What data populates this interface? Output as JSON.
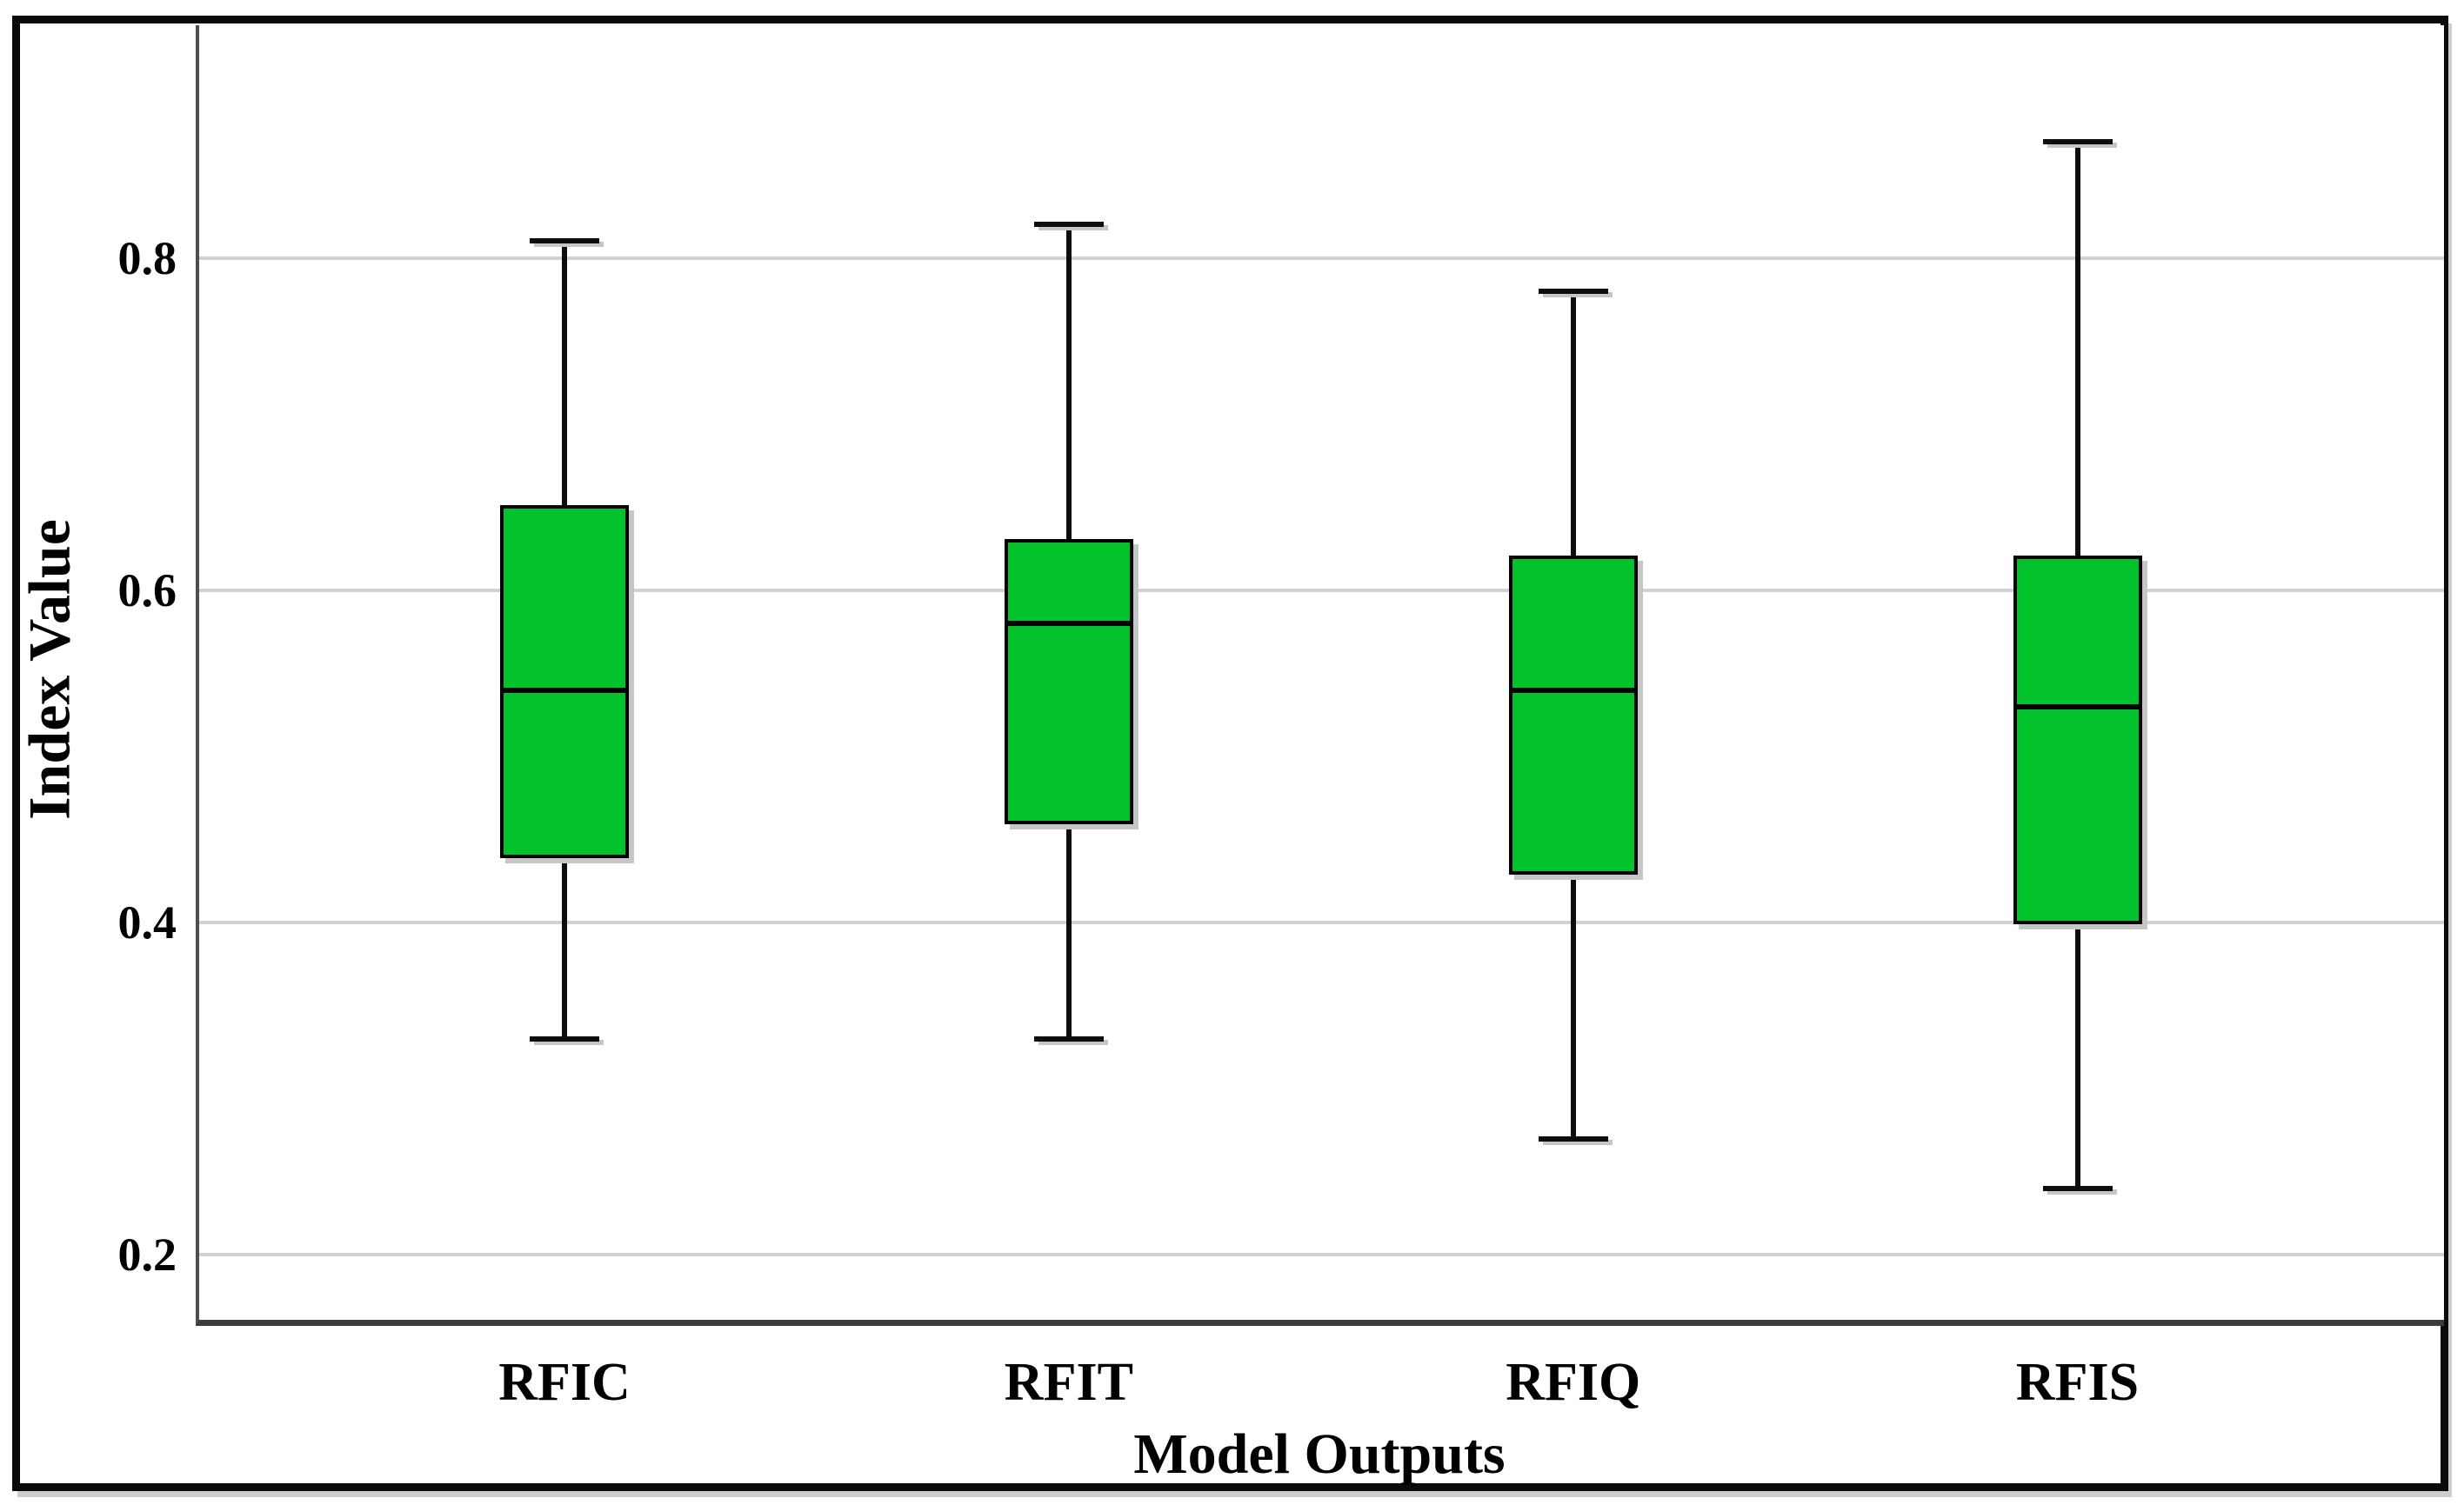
{
  "chart_data": {
    "type": "boxplot",
    "title": "",
    "xlabel": "Model Outputs",
    "ylabel": "Index Value",
    "categories": [
      "RFIC",
      "RFIT",
      "RFIQ",
      "RFIS"
    ],
    "boxes": [
      {
        "category": "RFIC",
        "whisker_low": 0.33,
        "q1": 0.44,
        "median": 0.54,
        "q3": 0.65,
        "whisker_high": 0.81
      },
      {
        "category": "RFIT",
        "whisker_low": 0.33,
        "q1": 0.46,
        "median": 0.58,
        "q3": 0.63,
        "whisker_high": 0.82
      },
      {
        "category": "RFIQ",
        "whisker_low": 0.27,
        "q1": 0.43,
        "median": 0.54,
        "q3": 0.62,
        "whisker_high": 0.78
      },
      {
        "category": "RFIS",
        "whisker_low": 0.24,
        "q1": 0.4,
        "median": 0.53,
        "q3": 0.62,
        "whisker_high": 0.87
      }
    ],
    "yticks": [
      "0.8",
      "0.6",
      "0.4",
      "0.2"
    ],
    "ytick_values": [
      0.8,
      0.6,
      0.4,
      0.2
    ],
    "ylim": [
      0.161,
      0.94
    ],
    "grid": true,
    "legend": "none",
    "colors": {
      "box_fill": "#03c32c",
      "box_border": "#000000",
      "whisker": "#0d0d0d",
      "gridline": "#d2d2d2",
      "axis_spine": "#4e4e4e",
      "figure_border": "#0a0a0a",
      "text": "#000000",
      "background": "#ffffff"
    }
  }
}
